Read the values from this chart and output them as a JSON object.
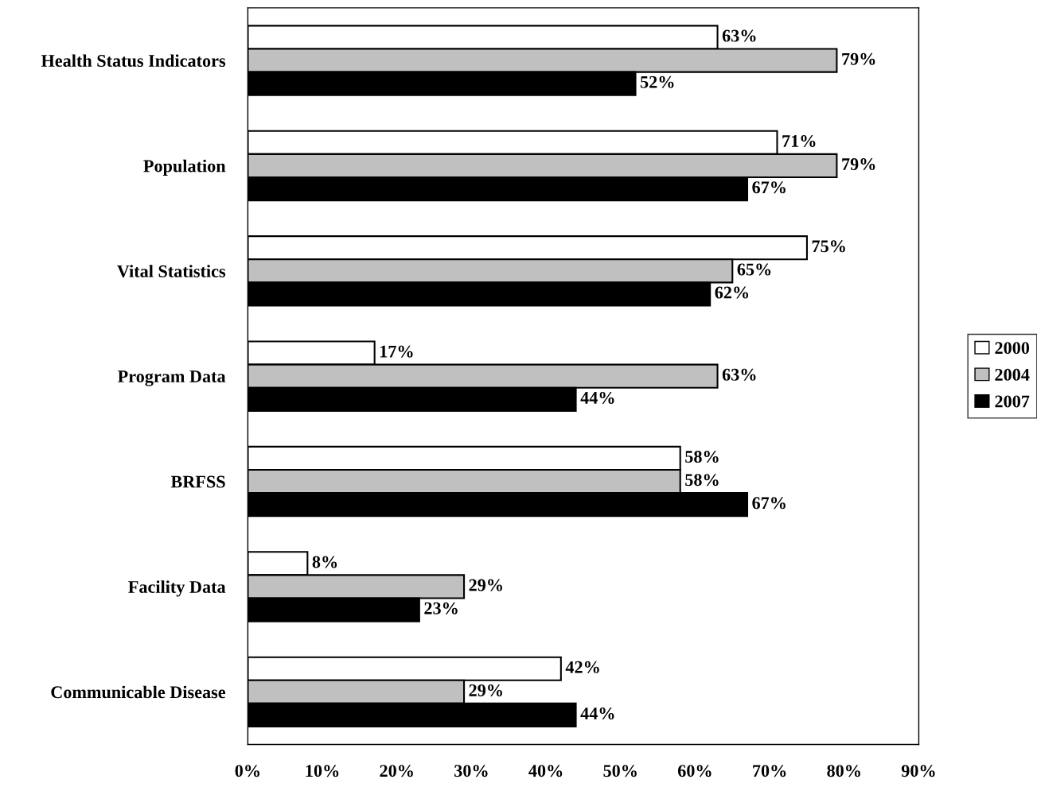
{
  "chart_data": {
    "type": "bar",
    "orientation": "horizontal",
    "categories": [
      "Health Status Indicators",
      "Population",
      "Vital Statistics",
      "Program Data",
      "BRFSS",
      "Facility Data",
      "Communicable Disease"
    ],
    "series": [
      {
        "name": "2000",
        "color": "#ffffff",
        "values": [
          63,
          71,
          75,
          17,
          58,
          8,
          42
        ],
        "value_labels": [
          "63%",
          "71%",
          "75%",
          "17%",
          "58%",
          "8%",
          "42%"
        ]
      },
      {
        "name": "2004",
        "color": "#c0c0c0",
        "values": [
          79,
          79,
          65,
          63,
          58,
          29,
          29
        ],
        "value_labels": [
          "79%",
          "79%",
          "65%",
          "63%",
          "58%",
          "29%",
          "29%"
        ]
      },
      {
        "name": "2007",
        "color": "#000000",
        "values": [
          52,
          67,
          62,
          44,
          67,
          23,
          44
        ],
        "value_labels": [
          "52%",
          "67%",
          "62%",
          "44%",
          "67%",
          "23%",
          "44%"
        ]
      }
    ],
    "xlim": [
      0,
      90
    ],
    "xticks": [
      {
        "value": 0,
        "label": "0%"
      },
      {
        "value": 10,
        "label": "10%"
      },
      {
        "value": 20,
        "label": "20%"
      },
      {
        "value": 30,
        "label": "30%"
      },
      {
        "value": 40,
        "label": "40%"
      },
      {
        "value": 50,
        "label": "50%"
      },
      {
        "value": 60,
        "label": "60%"
      },
      {
        "value": 70,
        "label": "70%"
      },
      {
        "value": 80,
        "label": "80%"
      },
      {
        "value": 90,
        "label": "90%"
      }
    ],
    "grid": false,
    "legend": "right"
  }
}
